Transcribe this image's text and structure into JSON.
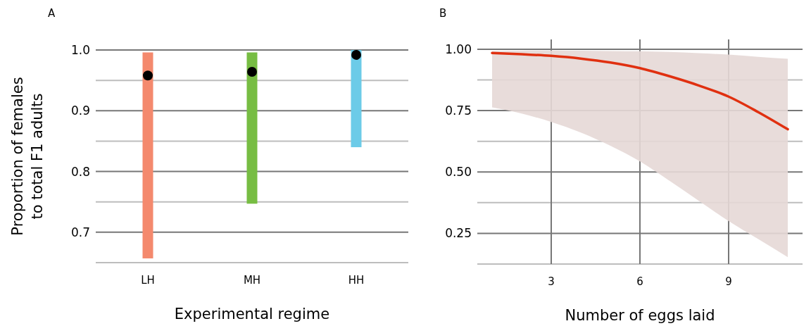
{
  "chart_data": [
    {
      "type": "bar",
      "title": "A",
      "xlabel": "Experimental regime",
      "ylabel": "Proportion of females to total F1 adults",
      "categories": [
        "LH",
        "MH",
        "HH"
      ],
      "ylim": [
        0.65,
        1.0
      ],
      "yticks": [
        {
          "value": 0.7,
          "label": "0.7"
        },
        {
          "value": 0.8,
          "label": "0.8"
        },
        {
          "value": 0.9,
          "label": "0.9"
        },
        {
          "value": 1.0,
          "label": "1.0"
        }
      ],
      "grid": "y",
      "base": [
        0.657,
        0.747,
        0.84
      ],
      "values": [
        0.339,
        0.249,
        0.16
      ],
      "colors": [
        "#f4896d",
        "#77bd43",
        "#6ccbe8"
      ],
      "series": [
        {
          "type": "scatter",
          "color": "#000000",
          "x": [
            "LH",
            "MH",
            "HH"
          ],
          "values": [
            0.958,
            0.964,
            0.992
          ]
        }
      ]
    },
    {
      "type": "line",
      "title": "B",
      "xlabel": "Number of eggs laid",
      "xlim": [
        0.5,
        11.5
      ],
      "xticks": [
        3,
        6,
        9
      ],
      "ylim": [
        0.125,
        1.04
      ],
      "yticks": [
        {
          "value": 0.25,
          "label": "0.25"
        },
        {
          "value": 0.5,
          "label": "0.50"
        },
        {
          "value": 0.75,
          "label": "0.75"
        },
        {
          "value": 1.0,
          "label": "1.00"
        }
      ],
      "grid": true,
      "x": [
        1,
        2,
        3,
        4,
        5,
        6,
        7,
        8,
        9,
        10,
        11
      ],
      "series": [
        {
          "color": "#e03010",
          "values": [
            0.985,
            0.98,
            0.973,
            0.962,
            0.946,
            0.923,
            0.89,
            0.852,
            0.807,
            0.744,
            0.674
          ],
          "lower": [
            0.763,
            0.738,
            0.704,
            0.661,
            0.607,
            0.543,
            0.464,
            0.382,
            0.3,
            0.227,
            0.153
          ],
          "upper": [
            0.992,
            0.994,
            0.995,
            0.994,
            0.993,
            0.992,
            0.989,
            0.984,
            0.978,
            0.969,
            0.961
          ]
        }
      ]
    }
  ]
}
